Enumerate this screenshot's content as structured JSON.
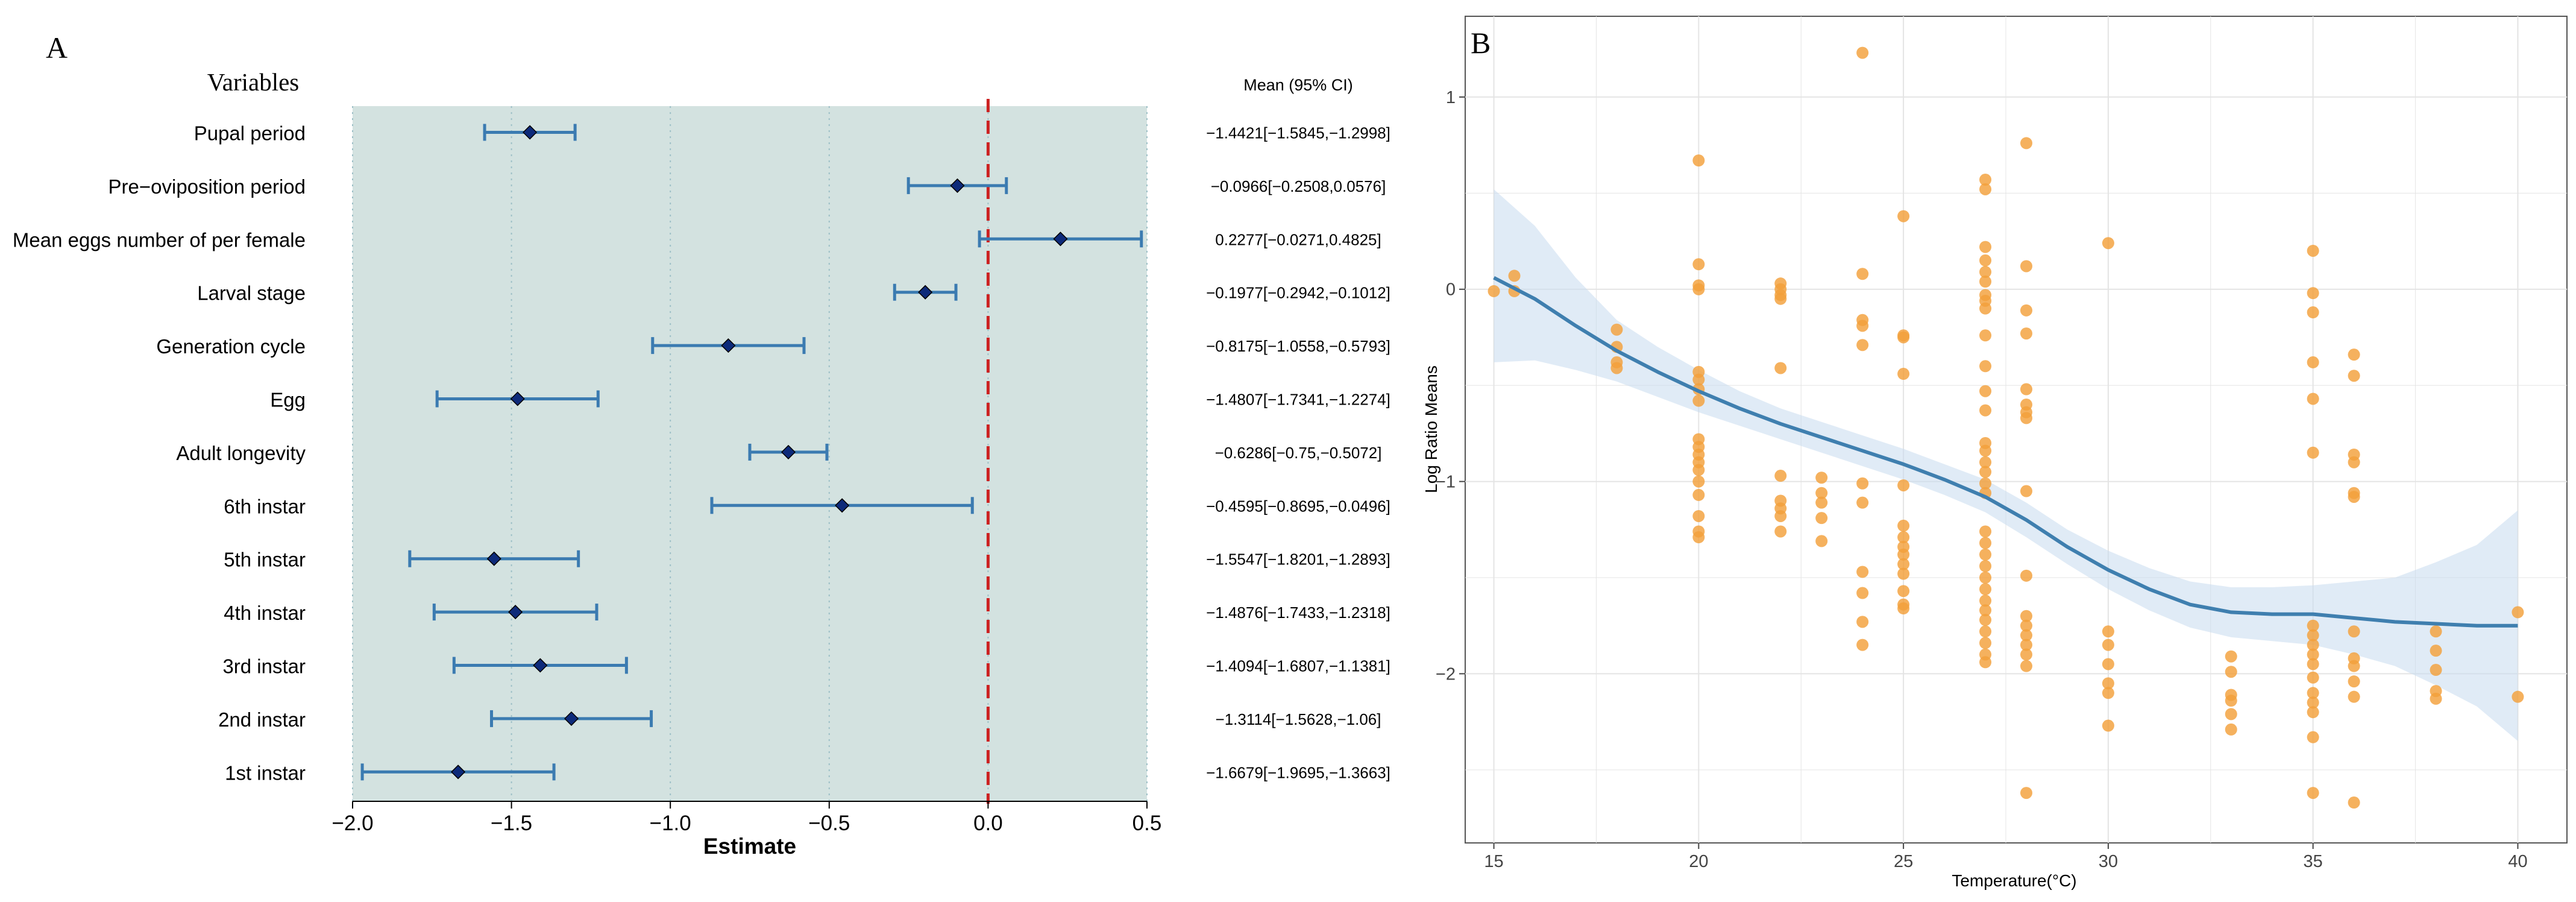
{
  "chart_data": [
    {
      "panel": "A",
      "type": "forest",
      "variables_header": "Variables",
      "ci_header": "Mean (95% CI)",
      "xlabel": "Estimate",
      "xlim": [
        -2.0,
        0.5
      ],
      "xticks": [
        -2.0,
        -1.5,
        -1.0,
        -0.5,
        0.0,
        0.5
      ],
      "xtick_labels": [
        "−2.0",
        "−1.5",
        "−1.0",
        "−0.5",
        "0.0",
        "0.5"
      ],
      "reference_line": 0,
      "rows": [
        {
          "label": "Pupal period",
          "mean": -1.4421,
          "lower": -1.5845,
          "upper": -1.2998,
          "ci_text": "−1.4421[−1.5845,−1.2998]"
        },
        {
          "label": "Pre−oviposition period",
          "mean": -0.0966,
          "lower": -0.2508,
          "upper": 0.0576,
          "ci_text": "−0.0966[−0.2508,0.0576]"
        },
        {
          "label": "Mean eggs number of per female",
          "mean": 0.2277,
          "lower": -0.0271,
          "upper": 0.4825,
          "ci_text": "0.2277[−0.0271,0.4825]"
        },
        {
          "label": "Larval stage",
          "mean": -0.1977,
          "lower": -0.2942,
          "upper": -0.1012,
          "ci_text": "−0.1977[−0.2942,−0.1012]"
        },
        {
          "label": "Generation cycle",
          "mean": -0.8175,
          "lower": -1.0558,
          "upper": -0.5793,
          "ci_text": "−0.8175[−1.0558,−0.5793]"
        },
        {
          "label": "Egg",
          "mean": -1.4807,
          "lower": -1.7341,
          "upper": -1.2274,
          "ci_text": "−1.4807[−1.7341,−1.2274]"
        },
        {
          "label": "Adult longevity",
          "mean": -0.6286,
          "lower": -0.75,
          "upper": -0.5072,
          "ci_text": "−0.6286[−0.75,−0.5072]"
        },
        {
          "label": "6th instar",
          "mean": -0.4595,
          "lower": -0.8695,
          "upper": -0.0496,
          "ci_text": "−0.4595[−0.8695,−0.0496]"
        },
        {
          "label": "5th instar",
          "mean": -1.5547,
          "lower": -1.8201,
          "upper": -1.2893,
          "ci_text": "−1.5547[−1.8201,−1.2893]"
        },
        {
          "label": "4th instar",
          "mean": -1.4876,
          "lower": -1.7433,
          "upper": -1.2318,
          "ci_text": "−1.4876[−1.7433,−1.2318]"
        },
        {
          "label": "3rd instar",
          "mean": -1.4094,
          "lower": -1.6807,
          "upper": -1.1381,
          "ci_text": "−1.4094[−1.6807,−1.1381]"
        },
        {
          "label": "2nd instar",
          "mean": -1.3114,
          "lower": -1.5628,
          "upper": -1.06,
          "ci_text": "−1.3114[−1.5628,−1.06]"
        },
        {
          "label": "1st instar",
          "mean": -1.6679,
          "lower": -1.9695,
          "upper": -1.3663,
          "ci_text": "−1.6679[−1.9695,−1.3663]"
        }
      ]
    },
    {
      "panel": "B",
      "type": "scatter",
      "xlabel": "Temperature(°C)",
      "ylabel": "Log Ratio Means",
      "xlim": [
        14.3,
        41.2
      ],
      "ylim": [
        -2.88,
        1.42
      ],
      "xticks": [
        15,
        20,
        25,
        30,
        35,
        40
      ],
      "xtick_labels": [
        "15",
        "20",
        "25",
        "30",
        "35",
        "40"
      ],
      "yticks": [
        1,
        0,
        -1,
        -2
      ],
      "ytick_labels": [
        "1",
        "0",
        "−1",
        "−2"
      ],
      "points": [
        [
          15,
          -0.01
        ],
        [
          15.5,
          0.07
        ],
        [
          15.5,
          -0.01
        ],
        [
          18,
          -0.21
        ],
        [
          18,
          -0.3
        ],
        [
          18,
          -0.38
        ],
        [
          18,
          -0.41
        ],
        [
          20,
          0.67
        ],
        [
          20,
          0.13
        ],
        [
          20,
          0.02
        ],
        [
          20,
          0.0
        ],
        [
          20,
          -0.43
        ],
        [
          20,
          -0.47
        ],
        [
          20,
          -0.52
        ],
        [
          20,
          -0.58
        ],
        [
          20,
          -0.78
        ],
        [
          20,
          -0.82
        ],
        [
          20,
          -0.86
        ],
        [
          20,
          -0.9
        ],
        [
          20,
          -0.94
        ],
        [
          20,
          -1.0
        ],
        [
          20,
          -1.07
        ],
        [
          20,
          -1.18
        ],
        [
          20,
          -1.26
        ],
        [
          20,
          -1.29
        ],
        [
          22,
          0.03
        ],
        [
          22,
          0.0
        ],
        [
          22,
          -0.03
        ],
        [
          22,
          -0.05
        ],
        [
          22,
          -0.41
        ],
        [
          22,
          -0.97
        ],
        [
          22,
          -1.1
        ],
        [
          22,
          -1.14
        ],
        [
          22,
          -1.18
        ],
        [
          22,
          -1.26
        ],
        [
          23,
          -0.98
        ],
        [
          23,
          -1.06
        ],
        [
          23,
          -1.11
        ],
        [
          23,
          -1.19
        ],
        [
          23,
          -1.31
        ],
        [
          24,
          1.23
        ],
        [
          24,
          0.08
        ],
        [
          24,
          -0.16
        ],
        [
          24,
          -0.19
        ],
        [
          24,
          -0.29
        ],
        [
          24,
          -1.01
        ],
        [
          24,
          -1.11
        ],
        [
          24,
          -1.47
        ],
        [
          24,
          -1.58
        ],
        [
          24,
          -1.73
        ],
        [
          24,
          -1.85
        ],
        [
          25,
          0.38
        ],
        [
          25,
          -0.24
        ],
        [
          25,
          -0.25
        ],
        [
          25,
          -0.44
        ],
        [
          25,
          -1.02
        ],
        [
          25,
          -1.23
        ],
        [
          25,
          -1.29
        ],
        [
          25,
          -1.34
        ],
        [
          25,
          -1.38
        ],
        [
          25,
          -1.43
        ],
        [
          25,
          -1.48
        ],
        [
          25,
          -1.57
        ],
        [
          25,
          -1.64
        ],
        [
          25,
          -1.66
        ],
        [
          27,
          0.57
        ],
        [
          27,
          0.52
        ],
        [
          27,
          0.22
        ],
        [
          27,
          0.15
        ],
        [
          27,
          0.09
        ],
        [
          27,
          0.04
        ],
        [
          27,
          -0.03
        ],
        [
          27,
          -0.06
        ],
        [
          27,
          -0.1
        ],
        [
          27,
          -0.24
        ],
        [
          27,
          -0.4
        ],
        [
          27,
          -0.53
        ],
        [
          27,
          -0.63
        ],
        [
          27,
          -0.8
        ],
        [
          27,
          -0.84
        ],
        [
          27,
          -0.9
        ],
        [
          27,
          -0.95
        ],
        [
          27,
          -1.01
        ],
        [
          27,
          -1.06
        ],
        [
          27,
          -1.26
        ],
        [
          27,
          -1.32
        ],
        [
          27,
          -1.38
        ],
        [
          27,
          -1.44
        ],
        [
          27,
          -1.5
        ],
        [
          27,
          -1.56
        ],
        [
          27,
          -1.62
        ],
        [
          27,
          -1.67
        ],
        [
          27,
          -1.72
        ],
        [
          27,
          -1.78
        ],
        [
          27,
          -1.84
        ],
        [
          27,
          -1.9
        ],
        [
          27,
          -1.94
        ],
        [
          28,
          0.76
        ],
        [
          28,
          0.12
        ],
        [
          28,
          -0.11
        ],
        [
          28,
          -0.23
        ],
        [
          28,
          -0.52
        ],
        [
          28,
          -0.6
        ],
        [
          28,
          -0.64
        ],
        [
          28,
          -0.67
        ],
        [
          28,
          -1.05
        ],
        [
          28,
          -1.49
        ],
        [
          28,
          -1.7
        ],
        [
          28,
          -1.75
        ],
        [
          28,
          -1.8
        ],
        [
          28,
          -1.85
        ],
        [
          28,
          -1.9
        ],
        [
          28,
          -1.96
        ],
        [
          28,
          -2.62
        ],
        [
          30,
          0.24
        ],
        [
          30,
          -1.78
        ],
        [
          30,
          -1.85
        ],
        [
          30,
          -1.95
        ],
        [
          30,
          -2.05
        ],
        [
          30,
          -2.1
        ],
        [
          30,
          -2.27
        ],
        [
          33,
          -1.91
        ],
        [
          33,
          -1.99
        ],
        [
          33,
          -2.11
        ],
        [
          33,
          -2.14
        ],
        [
          33,
          -2.21
        ],
        [
          33,
          -2.29
        ],
        [
          35,
          0.2
        ],
        [
          35,
          -0.02
        ],
        [
          35,
          -0.12
        ],
        [
          35,
          -0.38
        ],
        [
          35,
          -0.57
        ],
        [
          35,
          -0.85
        ],
        [
          35,
          -1.75
        ],
        [
          35,
          -1.8
        ],
        [
          35,
          -1.85
        ],
        [
          35,
          -1.9
        ],
        [
          35,
          -1.95
        ],
        [
          35,
          -2.02
        ],
        [
          35,
          -2.1
        ],
        [
          35,
          -2.15
        ],
        [
          35,
          -2.2
        ],
        [
          35,
          -2.33
        ],
        [
          35,
          -2.62
        ],
        [
          36,
          -0.34
        ],
        [
          36,
          -0.45
        ],
        [
          36,
          -0.86
        ],
        [
          36,
          -0.9
        ],
        [
          36,
          -1.06
        ],
        [
          36,
          -1.08
        ],
        [
          36,
          -1.78
        ],
        [
          36,
          -1.92
        ],
        [
          36,
          -1.96
        ],
        [
          36,
          -2.04
        ],
        [
          36,
          -2.12
        ],
        [
          36,
          -2.67
        ],
        [
          38,
          -1.78
        ],
        [
          38,
          -1.88
        ],
        [
          38,
          -1.98
        ],
        [
          38,
          -2.09
        ],
        [
          38,
          -2.13
        ],
        [
          40,
          -1.68
        ],
        [
          40,
          -2.12
        ]
      ],
      "smooth": {
        "x": [
          15,
          16,
          17,
          18,
          19,
          20,
          21,
          22,
          23,
          24,
          25,
          26,
          27,
          28,
          29,
          30,
          31,
          32,
          33,
          34,
          35,
          36,
          37,
          38,
          39,
          40
        ],
        "y": [
          0.06,
          -0.05,
          -0.19,
          -0.32,
          -0.43,
          -0.53,
          -0.62,
          -0.7,
          -0.77,
          -0.84,
          -0.91,
          -0.99,
          -1.08,
          -1.2,
          -1.34,
          -1.46,
          -1.56,
          -1.64,
          -1.68,
          -1.69,
          -1.69,
          -1.71,
          -1.73,
          -1.74,
          -1.75,
          -1.75
        ],
        "lower": [
          -0.38,
          -0.37,
          -0.42,
          -0.48,
          -0.56,
          -0.64,
          -0.71,
          -0.78,
          -0.85,
          -0.92,
          -0.99,
          -1.07,
          -1.16,
          -1.29,
          -1.43,
          -1.56,
          -1.67,
          -1.76,
          -1.81,
          -1.83,
          -1.85,
          -1.9,
          -1.96,
          -2.06,
          -2.17,
          -2.35
        ],
        "upper": [
          0.52,
          0.33,
          0.06,
          -0.16,
          -0.3,
          -0.42,
          -0.53,
          -0.62,
          -0.69,
          -0.76,
          -0.83,
          -0.91,
          -0.99,
          -1.11,
          -1.25,
          -1.36,
          -1.45,
          -1.52,
          -1.55,
          -1.55,
          -1.54,
          -1.52,
          -1.5,
          -1.42,
          -1.33,
          -1.15
        ]
      }
    }
  ],
  "panel_a_label": "A",
  "panel_b_label": "B",
  "colors": {
    "panel_a_bg": "#d3e2e0",
    "panel_a_grid": "#9ec0c7",
    "ci_line": "#3b7bb1",
    "diamond": "#0d2a7a",
    "ref_line": "#cc2222",
    "points": "#f3a03a",
    "smooth_line": "#3f7faf",
    "ribbon": "#c6daee",
    "panel_b_grid": "#e4e4e4"
  }
}
